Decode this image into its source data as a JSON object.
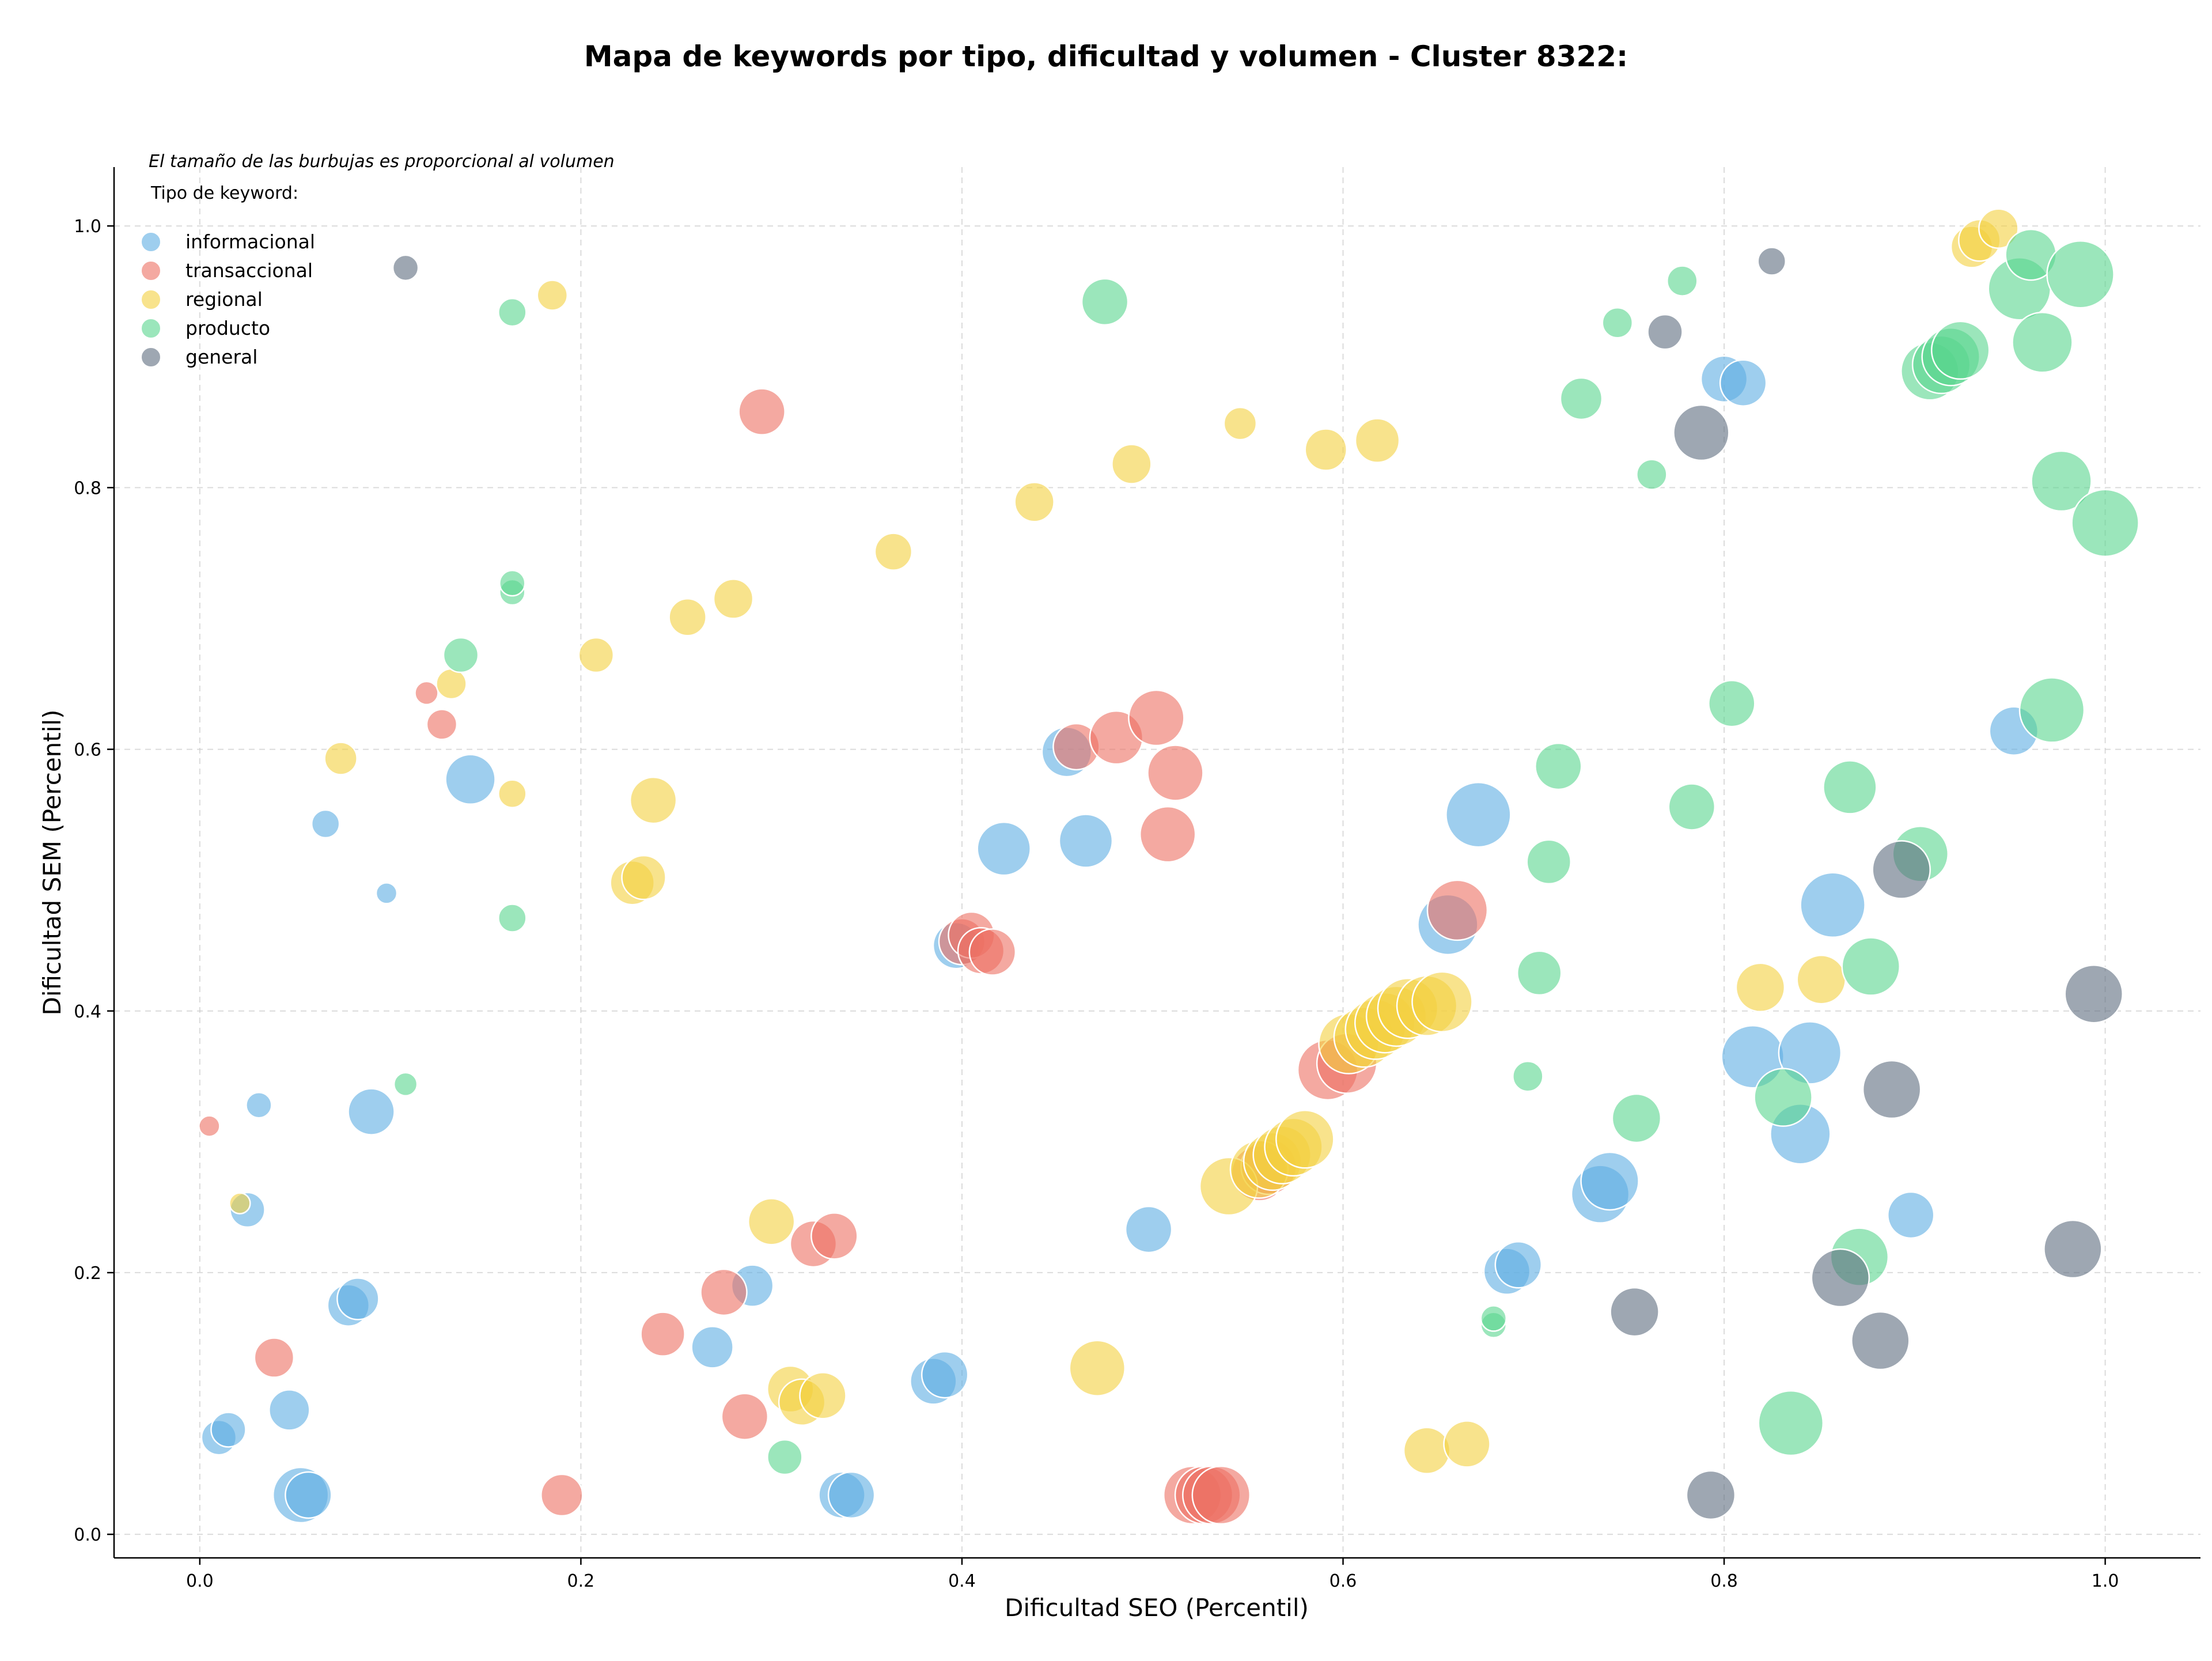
{
  "chart_data": {
    "type": "scatter",
    "title": "Mapa de keywords por tipo, dificultad y volumen - Cluster 8322:",
    "xlabel": "Dificultad SEO (Percentil)",
    "ylabel": "Dificultad SEM (Percentil)",
    "xlim": [
      -0.045,
      1.05
    ],
    "ylim": [
      -0.018,
      1.045
    ],
    "xticks": [
      0.0,
      0.2,
      0.4,
      0.6,
      0.8,
      1.0
    ],
    "yticks": [
      0.0,
      0.2,
      0.4,
      0.6,
      0.8,
      1.0
    ],
    "xtick_labels": [
      "0.0",
      "0.2",
      "0.4",
      "0.6",
      "0.8",
      "1.0"
    ],
    "ytick_labels": [
      "0.0",
      "0.2",
      "0.4",
      "0.6",
      "0.8",
      "1.0"
    ],
    "grid": true,
    "legend_note": "El tamaño de las burbujas es proporcional al volumen",
    "legend_title": "Tipo de keyword:",
    "legend_placement": "top-left",
    "series": [
      {
        "name": "informacional",
        "color": "#5DADE2",
        "points": [
          {
            "x": 0.01,
            "y": 0.074,
            "size": 30
          },
          {
            "x": 0.015,
            "y": 0.08,
            "size": 30
          },
          {
            "x": 0.025,
            "y": 0.248,
            "size": 30
          },
          {
            "x": 0.031,
            "y": 0.328,
            "size": 22
          },
          {
            "x": 0.047,
            "y": 0.095,
            "size": 35
          },
          {
            "x": 0.053,
            "y": 0.03,
            "size": 48
          },
          {
            "x": 0.057,
            "y": 0.03,
            "size": 40
          },
          {
            "x": 0.066,
            "y": 0.543,
            "size": 24
          },
          {
            "x": 0.078,
            "y": 0.175,
            "size": 36
          },
          {
            "x": 0.083,
            "y": 0.18,
            "size": 36
          },
          {
            "x": 0.09,
            "y": 0.323,
            "size": 40
          },
          {
            "x": 0.098,
            "y": 0.49,
            "size": 18
          },
          {
            "x": 0.142,
            "y": 0.577,
            "size": 43
          },
          {
            "x": 0.269,
            "y": 0.143,
            "size": 36
          },
          {
            "x": 0.29,
            "y": 0.19,
            "size": 36
          },
          {
            "x": 0.337,
            "y": 0.03,
            "size": 40
          },
          {
            "x": 0.342,
            "y": 0.03,
            "size": 40
          },
          {
            "x": 0.385,
            "y": 0.117,
            "size": 40
          },
          {
            "x": 0.391,
            "y": 0.122,
            "size": 40
          },
          {
            "x": 0.397,
            "y": 0.45,
            "size": 40
          },
          {
            "x": 0.422,
            "y": 0.524,
            "size": 46
          },
          {
            "x": 0.455,
            "y": 0.598,
            "size": 43
          },
          {
            "x": 0.465,
            "y": 0.53,
            "size": 46
          },
          {
            "x": 0.498,
            "y": 0.233,
            "size": 40
          },
          {
            "x": 0.655,
            "y": 0.466,
            "size": 52
          },
          {
            "x": 0.671,
            "y": 0.55,
            "size": 56
          },
          {
            "x": 0.686,
            "y": 0.201,
            "size": 40
          },
          {
            "x": 0.692,
            "y": 0.206,
            "size": 40
          },
          {
            "x": 0.735,
            "y": 0.26,
            "size": 50
          },
          {
            "x": 0.74,
            "y": 0.27,
            "size": 50
          },
          {
            "x": 0.8,
            "y": 0.883,
            "size": 40
          },
          {
            "x": 0.81,
            "y": 0.88,
            "size": 40
          },
          {
            "x": 0.815,
            "y": 0.365,
            "size": 54
          },
          {
            "x": 0.84,
            "y": 0.306,
            "size": 52
          },
          {
            "x": 0.845,
            "y": 0.368,
            "size": 54
          },
          {
            "x": 0.857,
            "y": 0.481,
            "size": 56
          },
          {
            "x": 0.898,
            "y": 0.244,
            "size": 40
          },
          {
            "x": 0.952,
            "y": 0.614,
            "size": 42
          }
        ]
      },
      {
        "name": "transaccional",
        "color": "#EC7063",
        "points": [
          {
            "x": 0.005,
            "y": 0.312,
            "size": 18
          },
          {
            "x": 0.039,
            "y": 0.135,
            "size": 34
          },
          {
            "x": 0.119,
            "y": 0.643,
            "size": 20
          },
          {
            "x": 0.127,
            "y": 0.619,
            "size": 26
          },
          {
            "x": 0.19,
            "y": 0.03,
            "size": 36
          },
          {
            "x": 0.243,
            "y": 0.153,
            "size": 38
          },
          {
            "x": 0.275,
            "y": 0.185,
            "size": 40
          },
          {
            "x": 0.286,
            "y": 0.09,
            "size": 40
          },
          {
            "x": 0.295,
            "y": 0.858,
            "size": 40
          },
          {
            "x": 0.322,
            "y": 0.222,
            "size": 40
          },
          {
            "x": 0.333,
            "y": 0.228,
            "size": 40
          },
          {
            "x": 0.4,
            "y": 0.453,
            "size": 40
          },
          {
            "x": 0.405,
            "y": 0.458,
            "size": 40
          },
          {
            "x": 0.41,
            "y": 0.446,
            "size": 40
          },
          {
            "x": 0.416,
            "y": 0.445,
            "size": 40
          },
          {
            "x": 0.46,
            "y": 0.602,
            "size": 40
          },
          {
            "x": 0.481,
            "y": 0.609,
            "size": 46
          },
          {
            "x": 0.502,
            "y": 0.624,
            "size": 48
          },
          {
            "x": 0.508,
            "y": 0.535,
            "size": 48
          },
          {
            "x": 0.512,
            "y": 0.582,
            "size": 48
          },
          {
            "x": 0.521,
            "y": 0.03,
            "size": 50
          },
          {
            "x": 0.527,
            "y": 0.03,
            "size": 50
          },
          {
            "x": 0.531,
            "y": 0.03,
            "size": 50
          },
          {
            "x": 0.536,
            "y": 0.03,
            "size": 50
          },
          {
            "x": 0.556,
            "y": 0.276,
            "size": 48
          },
          {
            "x": 0.561,
            "y": 0.281,
            "size": 48
          },
          {
            "x": 0.592,
            "y": 0.355,
            "size": 52
          },
          {
            "x": 0.602,
            "y": 0.36,
            "size": 52
          },
          {
            "x": 0.66,
            "y": 0.477,
            "size": 52
          }
        ]
      },
      {
        "name": "regional",
        "color": "#F4D03F",
        "points": [
          {
            "x": 0.021,
            "y": 0.253,
            "size": 18
          },
          {
            "x": 0.074,
            "y": 0.593,
            "size": 28
          },
          {
            "x": 0.132,
            "y": 0.65,
            "size": 26
          },
          {
            "x": 0.164,
            "y": 0.566,
            "size": 24
          },
          {
            "x": 0.185,
            "y": 0.947,
            "size": 26
          },
          {
            "x": 0.208,
            "y": 0.672,
            "size": 30
          },
          {
            "x": 0.227,
            "y": 0.498,
            "size": 38
          },
          {
            "x": 0.233,
            "y": 0.502,
            "size": 38
          },
          {
            "x": 0.238,
            "y": 0.561,
            "size": 40
          },
          {
            "x": 0.256,
            "y": 0.701,
            "size": 32
          },
          {
            "x": 0.28,
            "y": 0.715,
            "size": 34
          },
          {
            "x": 0.3,
            "y": 0.239,
            "size": 40
          },
          {
            "x": 0.31,
            "y": 0.111,
            "size": 40
          },
          {
            "x": 0.316,
            "y": 0.101,
            "size": 40
          },
          {
            "x": 0.327,
            "y": 0.106,
            "size": 40
          },
          {
            "x": 0.364,
            "y": 0.751,
            "size": 32
          },
          {
            "x": 0.438,
            "y": 0.789,
            "size": 34
          },
          {
            "x": 0.471,
            "y": 0.127,
            "size": 48
          },
          {
            "x": 0.489,
            "y": 0.818,
            "size": 34
          },
          {
            "x": 0.546,
            "y": 0.849,
            "size": 28
          },
          {
            "x": 0.54,
            "y": 0.266,
            "size": 50
          },
          {
            "x": 0.556,
            "y": 0.279,
            "size": 50
          },
          {
            "x": 0.563,
            "y": 0.285,
            "size": 50
          },
          {
            "x": 0.568,
            "y": 0.29,
            "size": 50
          },
          {
            "x": 0.574,
            "y": 0.296,
            "size": 50
          },
          {
            "x": 0.58,
            "y": 0.302,
            "size": 50
          },
          {
            "x": 0.591,
            "y": 0.829,
            "size": 36
          },
          {
            "x": 0.603,
            "y": 0.375,
            "size": 52
          },
          {
            "x": 0.611,
            "y": 0.38,
            "size": 52
          },
          {
            "x": 0.617,
            "y": 0.386,
            "size": 52
          },
          {
            "x": 0.622,
            "y": 0.391,
            "size": 52
          },
          {
            "x": 0.628,
            "y": 0.396,
            "size": 52
          },
          {
            "x": 0.634,
            "y": 0.402,
            "size": 52
          },
          {
            "x": 0.618,
            "y": 0.836,
            "size": 38
          },
          {
            "x": 0.644,
            "y": 0.064,
            "size": 40
          },
          {
            "x": 0.644,
            "y": 0.404,
            "size": 52
          },
          {
            "x": 0.652,
            "y": 0.407,
            "size": 52
          },
          {
            "x": 0.665,
            "y": 0.069,
            "size": 40
          },
          {
            "x": 0.819,
            "y": 0.418,
            "size": 42
          },
          {
            "x": 0.851,
            "y": 0.424,
            "size": 42
          },
          {
            "x": 0.93,
            "y": 0.984,
            "size": 36
          },
          {
            "x": 0.934,
            "y": 0.989,
            "size": 36
          },
          {
            "x": 0.944,
            "y": 0.998,
            "size": 34
          }
        ]
      },
      {
        "name": "producto",
        "color": "#58D68D",
        "points": [
          {
            "x": 0.108,
            "y": 0.344,
            "size": 20
          },
          {
            "x": 0.137,
            "y": 0.672,
            "size": 30
          },
          {
            "x": 0.164,
            "y": 0.471,
            "size": 24
          },
          {
            "x": 0.164,
            "y": 0.72,
            "size": 22
          },
          {
            "x": 0.164,
            "y": 0.727,
            "size": 22
          },
          {
            "x": 0.164,
            "y": 0.934,
            "size": 24
          },
          {
            "x": 0.307,
            "y": 0.059,
            "size": 30
          },
          {
            "x": 0.475,
            "y": 0.942,
            "size": 40
          },
          {
            "x": 0.679,
            "y": 0.16,
            "size": 22
          },
          {
            "x": 0.679,
            "y": 0.165,
            "size": 22
          },
          {
            "x": 0.697,
            "y": 0.35,
            "size": 26
          },
          {
            "x": 0.703,
            "y": 0.429,
            "size": 38
          },
          {
            "x": 0.708,
            "y": 0.514,
            "size": 38
          },
          {
            "x": 0.713,
            "y": 0.587,
            "size": 40
          },
          {
            "x": 0.725,
            "y": 0.868,
            "size": 36
          },
          {
            "x": 0.744,
            "y": 0.926,
            "size": 26
          },
          {
            "x": 0.754,
            "y": 0.318,
            "size": 42
          },
          {
            "x": 0.762,
            "y": 0.81,
            "size": 26
          },
          {
            "x": 0.778,
            "y": 0.958,
            "size": 26
          },
          {
            "x": 0.783,
            "y": 0.556,
            "size": 40
          },
          {
            "x": 0.804,
            "y": 0.635,
            "size": 40
          },
          {
            "x": 0.831,
            "y": 0.334,
            "size": 50
          },
          {
            "x": 0.835,
            "y": 0.085,
            "size": 56
          },
          {
            "x": 0.866,
            "y": 0.571,
            "size": 46
          },
          {
            "x": 0.871,
            "y": 0.212,
            "size": 50
          },
          {
            "x": 0.877,
            "y": 0.434,
            "size": 50
          },
          {
            "x": 0.903,
            "y": 0.52,
            "size": 48
          },
          {
            "x": 0.908,
            "y": 0.889,
            "size": 50
          },
          {
            "x": 0.914,
            "y": 0.894,
            "size": 50
          },
          {
            "x": 0.919,
            "y": 0.9,
            "size": 50
          },
          {
            "x": 0.924,
            "y": 0.905,
            "size": 50
          },
          {
            "x": 0.955,
            "y": 0.952,
            "size": 54
          },
          {
            "x": 0.961,
            "y": 0.978,
            "size": 44
          },
          {
            "x": 0.967,
            "y": 0.911,
            "size": 52
          },
          {
            "x": 0.972,
            "y": 0.63,
            "size": 56
          },
          {
            "x": 0.977,
            "y": 0.805,
            "size": 52
          },
          {
            "x": 0.987,
            "y": 0.963,
            "size": 58
          },
          {
            "x": 1.0,
            "y": 0.773,
            "size": 58
          }
        ]
      },
      {
        "name": "general",
        "color": "#5D6D7E",
        "points": [
          {
            "x": 0.108,
            "y": 0.968,
            "size": 22
          },
          {
            "x": 0.753,
            "y": 0.17,
            "size": 42
          },
          {
            "x": 0.769,
            "y": 0.919,
            "size": 30
          },
          {
            "x": 0.788,
            "y": 0.842,
            "size": 48
          },
          {
            "x": 0.793,
            "y": 0.03,
            "size": 42
          },
          {
            "x": 0.825,
            "y": 0.973,
            "size": 24
          },
          {
            "x": 0.861,
            "y": 0.196,
            "size": 50
          },
          {
            "x": 0.882,
            "y": 0.148,
            "size": 50
          },
          {
            "x": 0.888,
            "y": 0.34,
            "size": 50
          },
          {
            "x": 0.893,
            "y": 0.508,
            "size": 50
          },
          {
            "x": 0.983,
            "y": 0.218,
            "size": 50
          },
          {
            "x": 0.994,
            "y": 0.413,
            "size": 50
          }
        ]
      }
    ]
  }
}
